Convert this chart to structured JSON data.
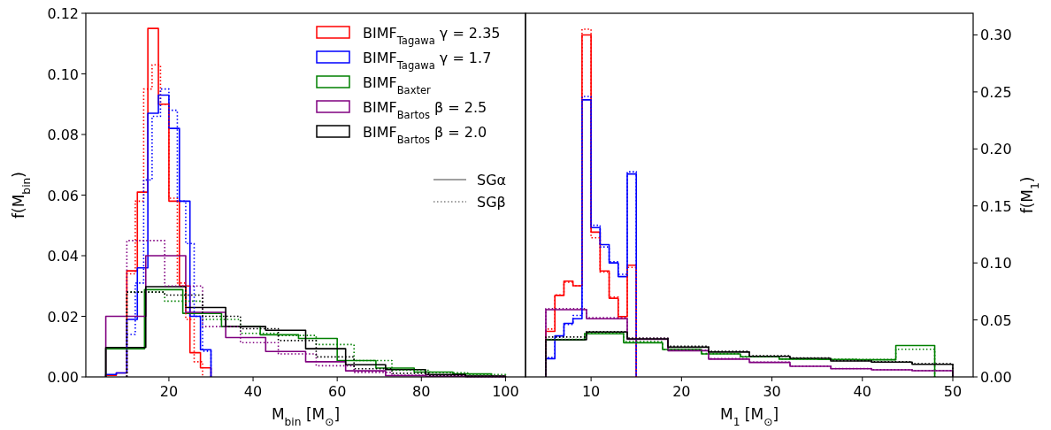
{
  "chart_data": [
    {
      "type": "step",
      "xlabel": "M$_{bin}$ [M$_{⊙}$]",
      "ylabel": "f(M$_{bin}$)",
      "xlim": [
        0.25,
        104.75
      ],
      "ylim": [
        0,
        0.12
      ],
      "xticks": [
        20,
        40,
        60,
        80,
        100
      ],
      "yticks": [
        {
          "value": 0,
          "label": "0.00"
        },
        {
          "value": 0.02,
          "label": "0.02"
        },
        {
          "value": 0.04,
          "label": "0.04"
        },
        {
          "value": 0.06,
          "label": "0.06"
        },
        {
          "value": 0.08,
          "label": "0.08"
        },
        {
          "value": 0.1,
          "label": "0.10"
        },
        {
          "value": 0.12,
          "label": "0.12"
        }
      ],
      "legend": "top right",
      "annotations": [
        "SGα",
        "SGβ"
      ],
      "series": [
        {
          "name": "BIMF$_{Tagawa}$ γ = 2.35",
          "color": "#ff0000",
          "line_style": "solid",
          "x": [
            5,
            5,
            7.5,
            10,
            12.5,
            15,
            17.5,
            20,
            22.5,
            25,
            27.5,
            30
          ],
          "values": [
            0,
            0.0005,
            0.0013,
            0.035,
            0.061,
            0.115,
            0.09,
            0.058,
            0.03,
            0.008,
            0.003,
            0
          ]
        },
        {
          "name": "BIMF$_{Tagawa}$ γ = 1.7",
          "color": "#0000ff",
          "line_style": "solid",
          "x": [
            5,
            5,
            7.5,
            10,
            12.5,
            15,
            17.5,
            20,
            22.5,
            25,
            27.5,
            30
          ],
          "values": [
            0,
            0.0008,
            0.0013,
            0.019,
            0.036,
            0.087,
            0.093,
            0.082,
            0.058,
            0.02,
            0.009,
            0
          ]
        },
        {
          "name": "BIMF$_{Baxter}$",
          "color": "#008000",
          "line_style": "solid",
          "x": [
            5,
            5,
            14.2,
            23.3,
            32.5,
            41.7,
            50.8,
            60,
            69.2,
            78.3,
            87.5,
            96.7
          ],
          "values": [
            0,
            0.0093,
            0.0288,
            0.021,
            0.0166,
            0.0139,
            0.0127,
            0.0054,
            0.0029,
            0.0016,
            0.001,
            0
          ]
        },
        {
          "name": "BIMF$_{Bartos}$ β = 2.5",
          "color": "#800080",
          "line_style": "solid",
          "x": [
            5,
            5,
            14.5,
            24,
            33.5,
            43,
            52.5,
            62,
            71.5,
            81,
            90.5,
            100
          ],
          "values": [
            0,
            0.02,
            0.04,
            0.0213,
            0.013,
            0.0084,
            0.005,
            0.002,
            0.0004,
            0.0002,
            0.0001,
            0
          ]
        },
        {
          "name": "BIMF$_{Bartos}$ β = 2.0",
          "color": "#000000",
          "line_style": "solid",
          "x": [
            5,
            5,
            14.5,
            24,
            33.5,
            43,
            52.5,
            62,
            71.5,
            81,
            90.5,
            100
          ],
          "values": [
            0,
            0.0097,
            0.0298,
            0.0229,
            0.0166,
            0.0154,
            0.0093,
            0.004,
            0.0024,
            0.0008,
            0.0003,
            0
          ]
        },
        {
          "color": "#ff0000",
          "line_style": "dotted",
          "x": [
            10,
            10,
            12,
            14,
            16,
            18,
            20,
            22,
            24,
            26,
            28
          ],
          "values": [
            0,
            0.034,
            0.058,
            0.095,
            0.103,
            0.09,
            0.059,
            0.031,
            0.019,
            0.005,
            0
          ]
        },
        {
          "color": "#0000ff",
          "line_style": "dotted",
          "x": [
            10,
            10,
            12,
            14,
            16,
            18,
            20,
            22,
            24,
            26,
            28,
            30
          ],
          "values": [
            0,
            0.014,
            0.031,
            0.065,
            0.086,
            0.095,
            0.088,
            0.058,
            0.044,
            0.02,
            0.0085,
            0
          ]
        },
        {
          "color": "#008000",
          "line_style": "dotted",
          "x": [
            10,
            10,
            19,
            28,
            37,
            46,
            55,
            64,
            73,
            82,
            91,
            100
          ],
          "values": [
            0,
            0.028,
            0.025,
            0.019,
            0.0144,
            0.0137,
            0.0107,
            0.0054,
            0.0022,
            0.0014,
            0.0008,
            0
          ]
        },
        {
          "color": "#800080",
          "line_style": "dotted",
          "x": [
            10,
            10,
            19,
            28,
            37,
            46,
            55,
            64,
            73,
            82,
            91,
            100
          ],
          "values": [
            0,
            0.045,
            0.03,
            0.0166,
            0.0113,
            0.0076,
            0.0037,
            0.0015,
            0.0006,
            0.0003,
            0.0001,
            0
          ]
        },
        {
          "color": "#000000",
          "line_style": "dotted",
          "x": [
            10,
            10,
            19,
            28,
            37,
            46,
            55,
            64,
            73,
            82,
            91,
            100
          ],
          "values": [
            0,
            0.028,
            0.027,
            0.02,
            0.0159,
            0.012,
            0.0066,
            0.0027,
            0.0012,
            0.0005,
            0.0002,
            0
          ]
        }
      ]
    },
    {
      "type": "step",
      "xlabel": "M$_{1}$ [M$_{⊙}$]",
      "ylabel": "f(M$_{1}$)",
      "xlim": [
        2.75,
        52.25
      ],
      "ylim": [
        0,
        0.319
      ],
      "xticks": [
        10,
        20,
        30,
        40,
        50
      ],
      "yticks": [
        {
          "value": 0,
          "label": "0.00"
        },
        {
          "value": 0.05,
          "label": "0.05"
        },
        {
          "value": 0.1,
          "label": "0.10"
        },
        {
          "value": 0.15,
          "label": "0.15"
        },
        {
          "value": 0.2,
          "label": "0.20"
        },
        {
          "value": 0.25,
          "label": "0.25"
        },
        {
          "value": 0.3,
          "label": "0.30"
        }
      ],
      "series": [
        {
          "color": "#ff0000",
          "line_style": "solid",
          "x": [
            5,
            5,
            6,
            7,
            8,
            9,
            10,
            11,
            12,
            13,
            14,
            15
          ],
          "values": [
            0,
            0.04,
            0.0715,
            0.084,
            0.08,
            0.3,
            0.127,
            0.093,
            0.069,
            0.053,
            0.098,
            0
          ]
        },
        {
          "color": "#0000ff",
          "line_style": "solid",
          "x": [
            5,
            5,
            6,
            7,
            8,
            9,
            10,
            11,
            12,
            13,
            14,
            15
          ],
          "values": [
            0,
            0.016,
            0.036,
            0.047,
            0.051,
            0.243,
            0.131,
            0.116,
            0.1,
            0.088,
            0.178,
            0
          ]
        },
        {
          "color": "#008000",
          "line_style": "solid",
          "x": [
            5,
            5,
            9.3,
            13.6,
            17.9,
            22.2,
            26.5,
            30.8,
            35.1,
            39.4,
            43.7,
            48
          ],
          "values": [
            0,
            0.0327,
            0.0378,
            0.03,
            0.0241,
            0.0202,
            0.0176,
            0.0156,
            0.0153,
            0.015,
            0.0275,
            0
          ]
        },
        {
          "color": "#800080",
          "line_style": "solid",
          "x": [
            5,
            5,
            9.5,
            14,
            18.5,
            23,
            27.5,
            32,
            36.5,
            41,
            45.5,
            50
          ],
          "values": [
            0,
            0.059,
            0.051,
            0.033,
            0.023,
            0.0156,
            0.0127,
            0.0093,
            0.0072,
            0.0062,
            0.0054,
            0
          ]
        },
        {
          "color": "#000000",
          "line_style": "solid",
          "x": [
            5,
            5,
            9.5,
            14,
            18.5,
            23,
            27.5,
            32,
            36.5,
            41,
            45.5,
            50
          ],
          "values": [
            0,
            0.0327,
            0.0394,
            0.0334,
            0.0261,
            0.0218,
            0.0181,
            0.0163,
            0.014,
            0.013,
            0.0111,
            0
          ]
        },
        {
          "color": "#ff0000",
          "line_style": "dotted",
          "x": [
            5,
            5,
            6,
            7,
            8,
            9,
            10,
            11,
            12,
            13,
            14,
            15
          ],
          "values": [
            0,
            0.042,
            0.072,
            0.083,
            0.08,
            0.305,
            0.122,
            0.092,
            0.07,
            0.052,
            0.096,
            0
          ]
        },
        {
          "color": "#0000ff",
          "line_style": "dotted",
          "x": [
            5,
            5,
            6,
            7,
            8,
            9,
            10,
            11,
            12,
            13,
            14,
            15
          ],
          "values": [
            0,
            0.017,
            0.035,
            0.046,
            0.054,
            0.246,
            0.133,
            0.114,
            0.101,
            0.09,
            0.18,
            0
          ]
        },
        {
          "color": "#008000",
          "line_style": "dotted",
          "x": [
            5,
            5,
            9.3,
            13.6,
            17.9,
            22.2,
            26.5,
            30.8,
            35.1,
            39.4,
            43.7,
            48
          ],
          "values": [
            0,
            0.033,
            0.038,
            0.031,
            0.024,
            0.0205,
            0.0178,
            0.0158,
            0.0155,
            0.0152,
            0.0243,
            0
          ]
        },
        {
          "color": "#800080",
          "line_style": "dotted",
          "x": [
            5,
            5,
            9.5,
            14,
            18.5,
            23,
            27.5,
            32,
            36.5,
            41,
            45.5,
            50
          ],
          "values": [
            0,
            0.06,
            0.052,
            0.034,
            0.0235,
            0.016,
            0.013,
            0.0095,
            0.0074,
            0.0064,
            0.0056,
            0
          ]
        },
        {
          "color": "#000000",
          "line_style": "dotted",
          "x": [
            5,
            5,
            9.5,
            14,
            18.5,
            23,
            27.5,
            32,
            36.5,
            41,
            45.5,
            50
          ],
          "values": [
            0,
            0.035,
            0.0398,
            0.034,
            0.027,
            0.0225,
            0.0186,
            0.0167,
            0.0144,
            0.0134,
            0.0116,
            0
          ]
        }
      ]
    }
  ]
}
